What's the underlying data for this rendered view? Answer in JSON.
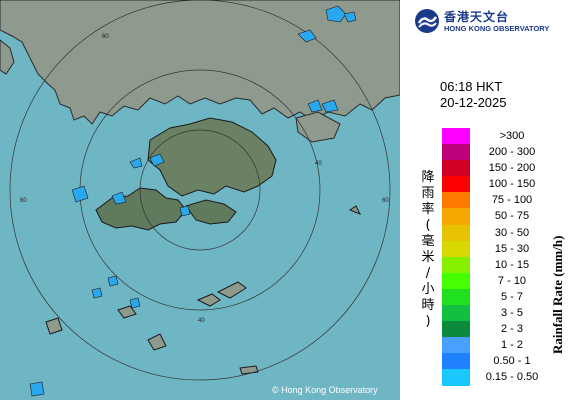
{
  "map": {
    "copyright": "© Hong Kong Observatory",
    "ring_labels": [
      "60",
      "60",
      "60",
      "40",
      "40"
    ],
    "colors": {
      "sea": "#6fb6c4",
      "land": "#8e9a92",
      "terrain": "#5e7a5a",
      "rain": "#29a9f0",
      "ring": "#333333"
    }
  },
  "header": {
    "logo_cn": "香港天文台",
    "logo_en": "HONG KONG OBSERVATORY",
    "logo_icon": "hko-logo-icon"
  },
  "timestamp": {
    "time": "06:18 HKT",
    "date": "20-12-2025"
  },
  "legend": {
    "title_cn": "降雨率(毫米/小時)",
    "title_en": "Rainfall Rate (mm/h)",
    "items": [
      {
        "label": ">300",
        "color": "#ff00ff"
      },
      {
        "label": "200 - 300",
        "color": "#c0007a"
      },
      {
        "label": "150 - 200",
        "color": "#d20024"
      },
      {
        "label": "100 - 150",
        "color": "#ff0000"
      },
      {
        "label": "75 - 100",
        "color": "#ff7b00"
      },
      {
        "label": "50 - 75",
        "color": "#f6a800"
      },
      {
        "label": "30 - 50",
        "color": "#e6c200"
      },
      {
        "label": "15 - 30",
        "color": "#d8d800"
      },
      {
        "label": "10 - 15",
        "color": "#86f000"
      },
      {
        "label": "7 - 10",
        "color": "#46ff00"
      },
      {
        "label": "5 - 7",
        "color": "#20e020"
      },
      {
        "label": "3 - 5",
        "color": "#12c040"
      },
      {
        "label": "2 - 3",
        "color": "#0a8a3a"
      },
      {
        "label": "1 - 2",
        "color": "#4aa0ff"
      },
      {
        "label": "0.50 - 1",
        "color": "#1e82ff"
      },
      {
        "label": "0.15 - 0.50",
        "color": "#18c8ff"
      }
    ]
  }
}
